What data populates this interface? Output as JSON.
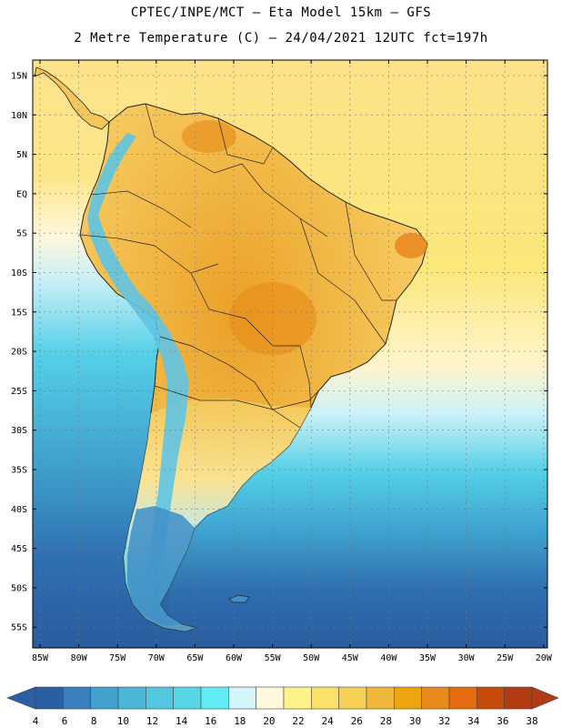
{
  "title_line1": "CPTEC/INPE/MCT –  Eta Model 15km – GFS",
  "title_line2": "2 Metre Temperature (C) – 24/04/2021 12UTC fct=197h",
  "lat_labels": [
    "15N",
    "10N",
    "5N",
    "EQ",
    "5S",
    "10S",
    "15S",
    "20S",
    "25S",
    "30S",
    "35S",
    "40S",
    "45S",
    "50S",
    "55S"
  ],
  "lon_labels": [
    "85W",
    "80W",
    "75W",
    "70W",
    "65W",
    "60W",
    "55W",
    "50W",
    "45W",
    "40W",
    "35W",
    "30W",
    "25W",
    "20W"
  ],
  "colorbar": {
    "ticks": [
      "4",
      "6",
      "8",
      "10",
      "12",
      "14",
      "16",
      "18",
      "20",
      "22",
      "24",
      "26",
      "28",
      "30",
      "32",
      "34",
      "36",
      "38"
    ],
    "colors": [
      "#2b5fa3",
      "#3a80be",
      "#44a0cc",
      "#4cb6d8",
      "#52c7df",
      "#57d7e6",
      "#61ebf2",
      "#d2f6fb",
      "#fff8dc",
      "#fff28a",
      "#fbe06a",
      "#f6cf55",
      "#efb83a",
      "#eda40e",
      "#e88a1c",
      "#e46c0e",
      "#c64a0a",
      "#b23b12"
    ],
    "below_color": "#2b5fa3",
    "above_color": "#b23b12"
  },
  "map": {
    "ocean_north": "#fde68a",
    "ocean_tropical": "#fbe77a",
    "ocean_warm": "#fef7d5",
    "ocean_cool": "#ccf1f8",
    "ocean_cold": "#56d1e8",
    "ocean_colder": "#3b9fcd",
    "ocean_coldest": "#2c62a6",
    "land_hot": "#eca42a",
    "land_warm": "#f5c65a",
    "land_mild": "#f9de7c",
    "andes": "#5fc4e3",
    "patagonia": "#3e8ec8",
    "fuego": "#2f5f9c"
  }
}
